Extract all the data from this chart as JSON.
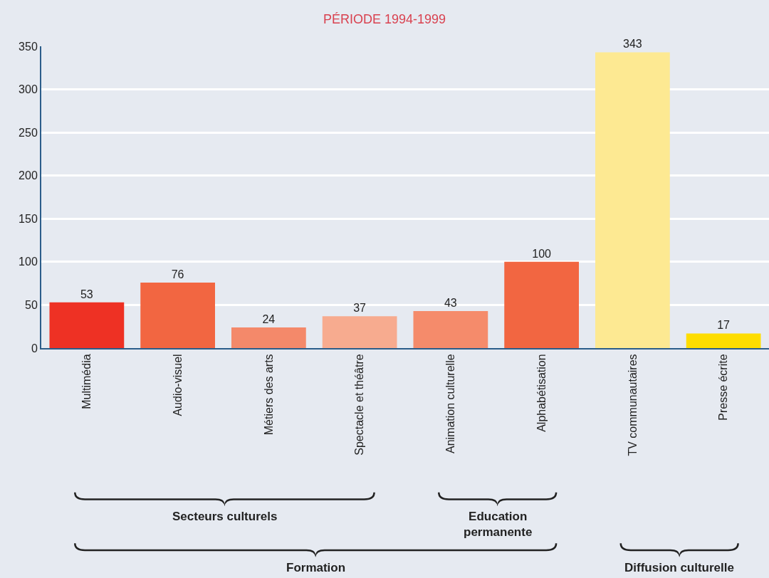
{
  "chart_data": {
    "type": "bar",
    "title": "PÉRIODE 1994-1999",
    "categories": [
      "Multimédia",
      "Audio-visuel",
      "Métiers des arts",
      "Spectacle et théâtre",
      "Animation culturelle",
      "Alphabétisation",
      "TV communautaires",
      "Presse écrite"
    ],
    "values": [
      53,
      76,
      24,
      37,
      43,
      100,
      343,
      17
    ],
    "colors": [
      "#ee3124",
      "#f26641",
      "#f4896a",
      "#f7ab8f",
      "#f58b6b",
      "#f26641",
      "#fde992",
      "#fedd00"
    ],
    "ylim": [
      0,
      350
    ],
    "yticks": [
      0,
      50,
      100,
      150,
      200,
      250,
      300,
      350
    ],
    "grid": "y",
    "data_labels": true,
    "annotations": [
      "Secteurs culturels",
      "Education permanente",
      "Formation",
      "Diffusion culturelle"
    ]
  }
}
